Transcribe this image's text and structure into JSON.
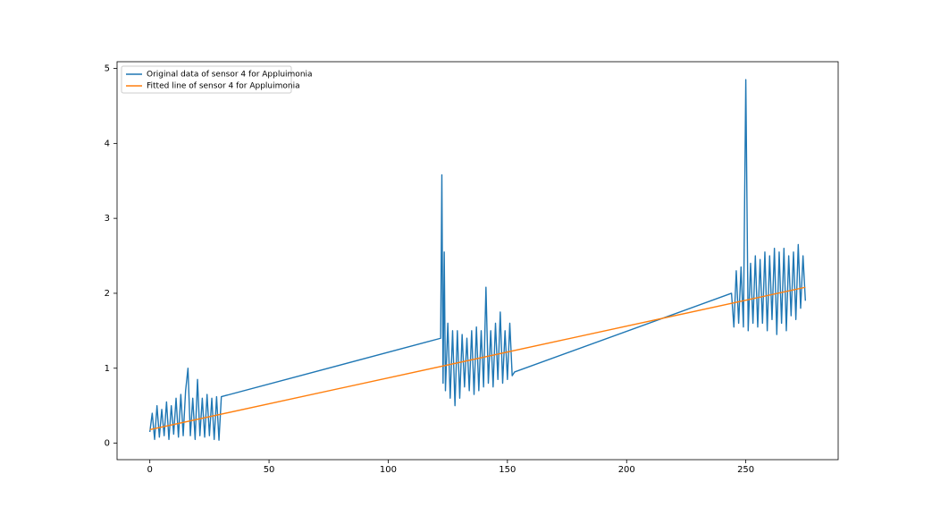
{
  "chart_data": {
    "type": "line",
    "series": [
      {
        "name": "Original data of sensor 4 for Appluimonia",
        "color": "#1f77b4",
        "x": [
          0,
          1,
          2,
          3,
          4,
          5,
          6,
          7,
          8,
          9,
          10,
          11,
          12,
          13,
          14,
          15,
          16,
          17,
          18,
          19,
          20,
          21,
          22,
          23,
          24,
          25,
          26,
          27,
          28,
          29,
          30,
          122,
          122.5,
          123,
          123.5,
          124,
          125,
          126,
          127,
          128,
          129,
          130,
          131,
          132,
          133,
          134,
          135,
          136,
          137,
          138,
          139,
          140,
          141,
          142,
          143,
          144,
          145,
          146,
          147,
          148,
          149,
          150,
          151,
          152,
          153,
          244,
          245,
          246,
          247,
          248,
          249,
          250,
          251,
          252,
          253,
          254,
          255,
          256,
          257,
          258,
          259,
          260,
          261,
          262,
          263,
          264,
          265,
          266,
          267,
          268,
          269,
          270,
          271,
          272,
          273,
          274,
          275
        ],
        "values": [
          0.15,
          0.4,
          0.05,
          0.5,
          0.08,
          0.45,
          0.1,
          0.55,
          0.05,
          0.5,
          0.12,
          0.6,
          0.08,
          0.65,
          0.1,
          0.7,
          1.0,
          0.1,
          0.6,
          0.05,
          0.85,
          0.1,
          0.6,
          0.08,
          0.65,
          0.1,
          0.6,
          0.05,
          0.62,
          0.04,
          0.62,
          1.4,
          3.58,
          0.8,
          2.55,
          0.7,
          1.6,
          0.6,
          1.5,
          0.5,
          1.5,
          0.6,
          1.45,
          0.75,
          1.4,
          0.7,
          1.5,
          0.65,
          1.55,
          0.7,
          1.5,
          0.75,
          2.08,
          0.8,
          1.5,
          0.75,
          1.6,
          0.85,
          1.75,
          0.8,
          1.5,
          0.85,
          1.6,
          0.9,
          0.95,
          2.0,
          1.55,
          2.3,
          1.6,
          2.35,
          1.55,
          4.85,
          1.5,
          2.4,
          1.6,
          2.5,
          1.55,
          2.45,
          1.6,
          2.55,
          1.5,
          2.5,
          1.65,
          2.6,
          1.45,
          2.55,
          1.6,
          2.6,
          1.5,
          2.5,
          1.7,
          2.55,
          1.65,
          2.65,
          1.8,
          2.5,
          1.9
        ]
      },
      {
        "name": "Fitted line of sensor 4 for Appluimonia",
        "color": "#ff7f0e",
        "x": [
          0,
          275
        ],
        "values": [
          0.18,
          2.08
        ]
      }
    ],
    "xlim": [
      -13.75,
      288.75
    ],
    "xticks": [
      0,
      50,
      100,
      150,
      200,
      250
    ],
    "ylim": [
      -0.22,
      5.09
    ],
    "yticks": [
      0,
      1,
      2,
      3,
      4,
      5
    ],
    "legend": "upper left"
  }
}
